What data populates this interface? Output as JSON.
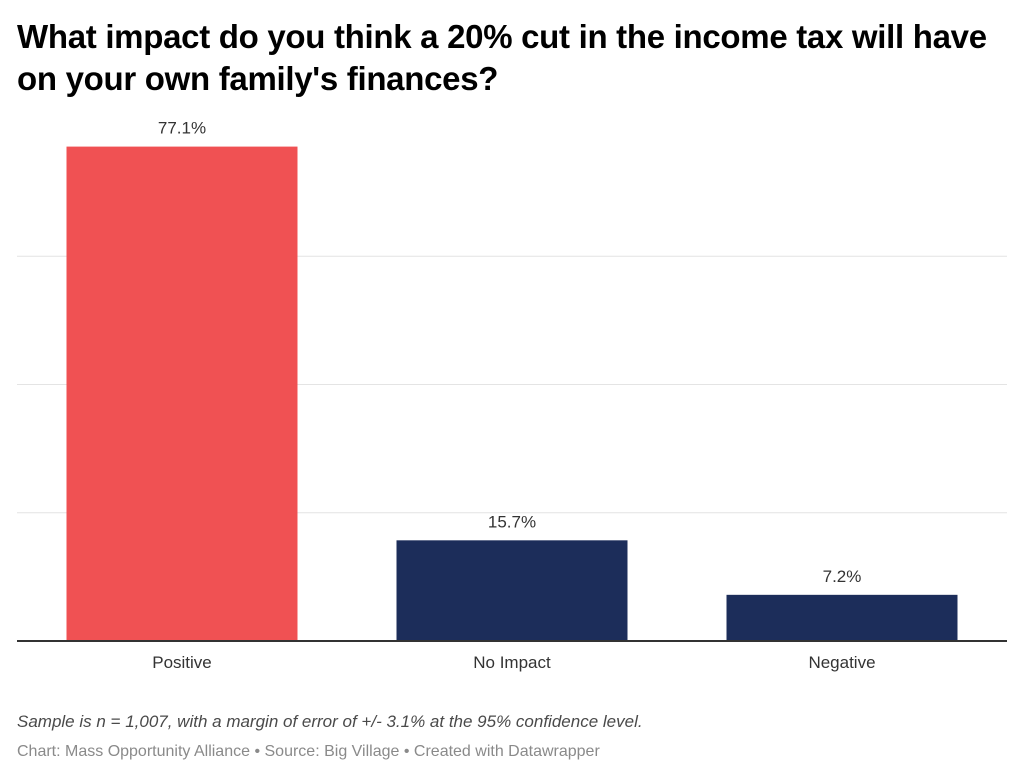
{
  "chart_data": {
    "type": "bar",
    "title": "What impact do you think a 20% cut in the income tax will have on your own family's finances?",
    "categories": [
      "Positive",
      "No Impact",
      "Negative"
    ],
    "values": [
      77.1,
      15.7,
      7.2
    ],
    "data_labels": [
      "77.1%",
      "15.7%",
      "7.2%"
    ],
    "colors": [
      "#f05153",
      "#1c2d5a",
      "#1c2d5a"
    ],
    "xlabel": "",
    "ylabel": "",
    "ylim": [
      0,
      80
    ],
    "gridlines": [
      20,
      40,
      60
    ],
    "grid": true,
    "y_tick_labels_visible": false,
    "legend": "none"
  },
  "notes": "Sample is n = 1,007, with a margin of error of +/- 3.1% at the 95% confidence level.",
  "byline": {
    "chart_credit": "Chart: Mass Opportunity Alliance",
    "source": "Source: Big Village",
    "tool": "Created with Datawrapper",
    "separator": " • "
  }
}
